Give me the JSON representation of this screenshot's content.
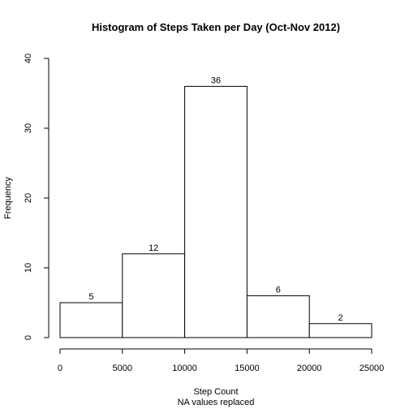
{
  "chart_data": {
    "type": "bar",
    "title": "Histogram of Steps Taken per Day (Oct-Nov 2012)",
    "xlabel": "Step Count",
    "xlabel_sub": "NA values replaced",
    "ylabel": "Frequency",
    "bins": [
      {
        "start": 0,
        "end": 5000,
        "value": 5
      },
      {
        "start": 5000,
        "end": 10000,
        "value": 12
      },
      {
        "start": 10000,
        "end": 15000,
        "value": 36
      },
      {
        "start": 15000,
        "end": 20000,
        "value": 6
      },
      {
        "start": 20000,
        "end": 25000,
        "value": 2
      }
    ],
    "data_labels": [
      "5",
      "12",
      "36",
      "6",
      "2"
    ],
    "xlim": [
      0,
      25000
    ],
    "ylim": [
      0,
      40
    ],
    "xticks": [
      0,
      5000,
      10000,
      15000,
      20000,
      25000
    ],
    "xtick_labels": [
      "0",
      "5000",
      "10000",
      "15000",
      "20000",
      "25000"
    ],
    "yticks": [
      0,
      10,
      20,
      30,
      40
    ],
    "ytick_labels": [
      "0",
      "10",
      "20",
      "30",
      "40"
    ],
    "grid": false,
    "bar_fill": "#ffffff",
    "bar_stroke": "#000000"
  }
}
